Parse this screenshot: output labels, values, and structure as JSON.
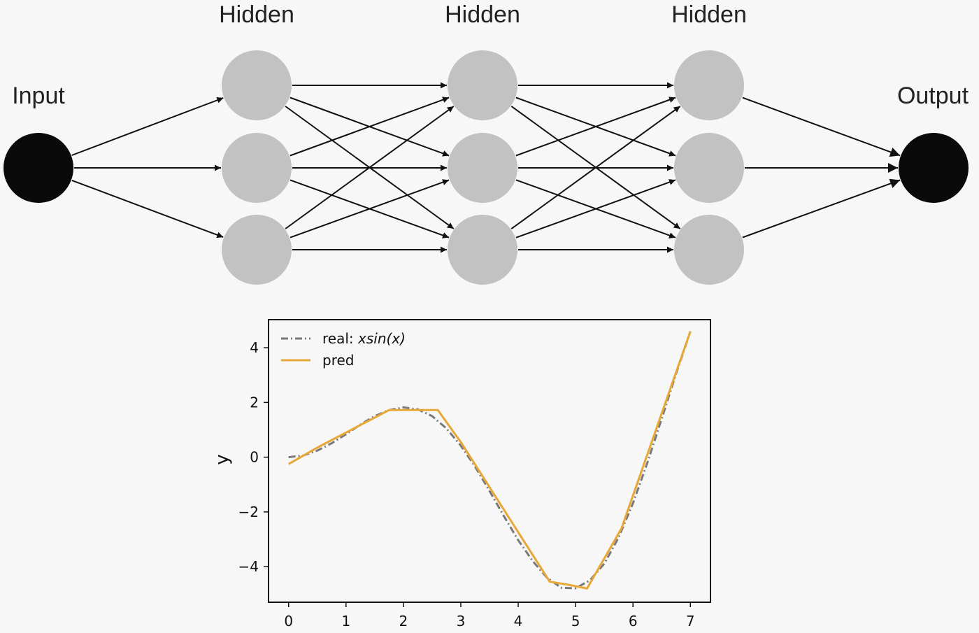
{
  "network": {
    "layers": [
      {
        "label": "Input",
        "count": 1,
        "color": "#0a0a0a"
      },
      {
        "label": "Hidden",
        "count": 3,
        "color": "#c2c2c2"
      },
      {
        "label": "Hidden",
        "count": 3,
        "color": "#c2c2c2"
      },
      {
        "label": "Hidden",
        "count": 3,
        "color": "#c2c2c2"
      },
      {
        "label": "Output",
        "count": 1,
        "color": "#0a0a0a"
      }
    ],
    "edge_color": "#111111"
  },
  "chart_data": {
    "type": "line",
    "xlabel": "",
    "ylabel": "y",
    "xlim": [
      -0.35,
      7.35
    ],
    "ylim": [
      -5.3,
      5.0
    ],
    "xticks": [
      0,
      1,
      2,
      3,
      4,
      5,
      6,
      7
    ],
    "yticks": [
      -4,
      -2,
      0,
      2,
      4
    ],
    "ytick_labels": [
      "−4",
      "−2",
      "0",
      "2",
      "4"
    ],
    "legend": {
      "position": "upper-left"
    },
    "series": [
      {
        "name": "real: xsin(x)",
        "name_prefix": "real: ",
        "name_math": "xsin(x)",
        "style": "dashdot",
        "color": "#7a7a7a",
        "x": [
          0,
          0.25,
          0.5,
          0.75,
          1,
          1.25,
          1.5,
          1.75,
          2,
          2.25,
          2.5,
          2.75,
          3,
          3.25,
          3.5,
          3.75,
          4,
          4.25,
          4.5,
          4.75,
          5,
          5.25,
          5.5,
          5.75,
          6,
          6.25,
          6.5,
          6.75,
          7
        ],
        "y": [
          0,
          0.06,
          0.24,
          0.51,
          0.84,
          1.19,
          1.5,
          1.72,
          1.82,
          1.75,
          1.5,
          1.05,
          0.42,
          -0.35,
          -1.23,
          -2.15,
          -3.03,
          -3.79,
          -4.4,
          -4.77,
          -4.79,
          -4.5,
          -3.89,
          -2.93,
          -1.68,
          -0.21,
          1.4,
          3.05,
          4.6
        ]
      },
      {
        "name": "pred",
        "style": "solid",
        "color": "#e8a838",
        "x": [
          0,
          0.5,
          1.0,
          1.75,
          2.6,
          3.0,
          4.55,
          4.85,
          5.2,
          5.8,
          7.0
        ],
        "y": [
          -0.25,
          0.35,
          0.9,
          1.72,
          1.72,
          0.55,
          -4.55,
          -4.65,
          -4.8,
          -2.6,
          4.6
        ]
      }
    ]
  }
}
